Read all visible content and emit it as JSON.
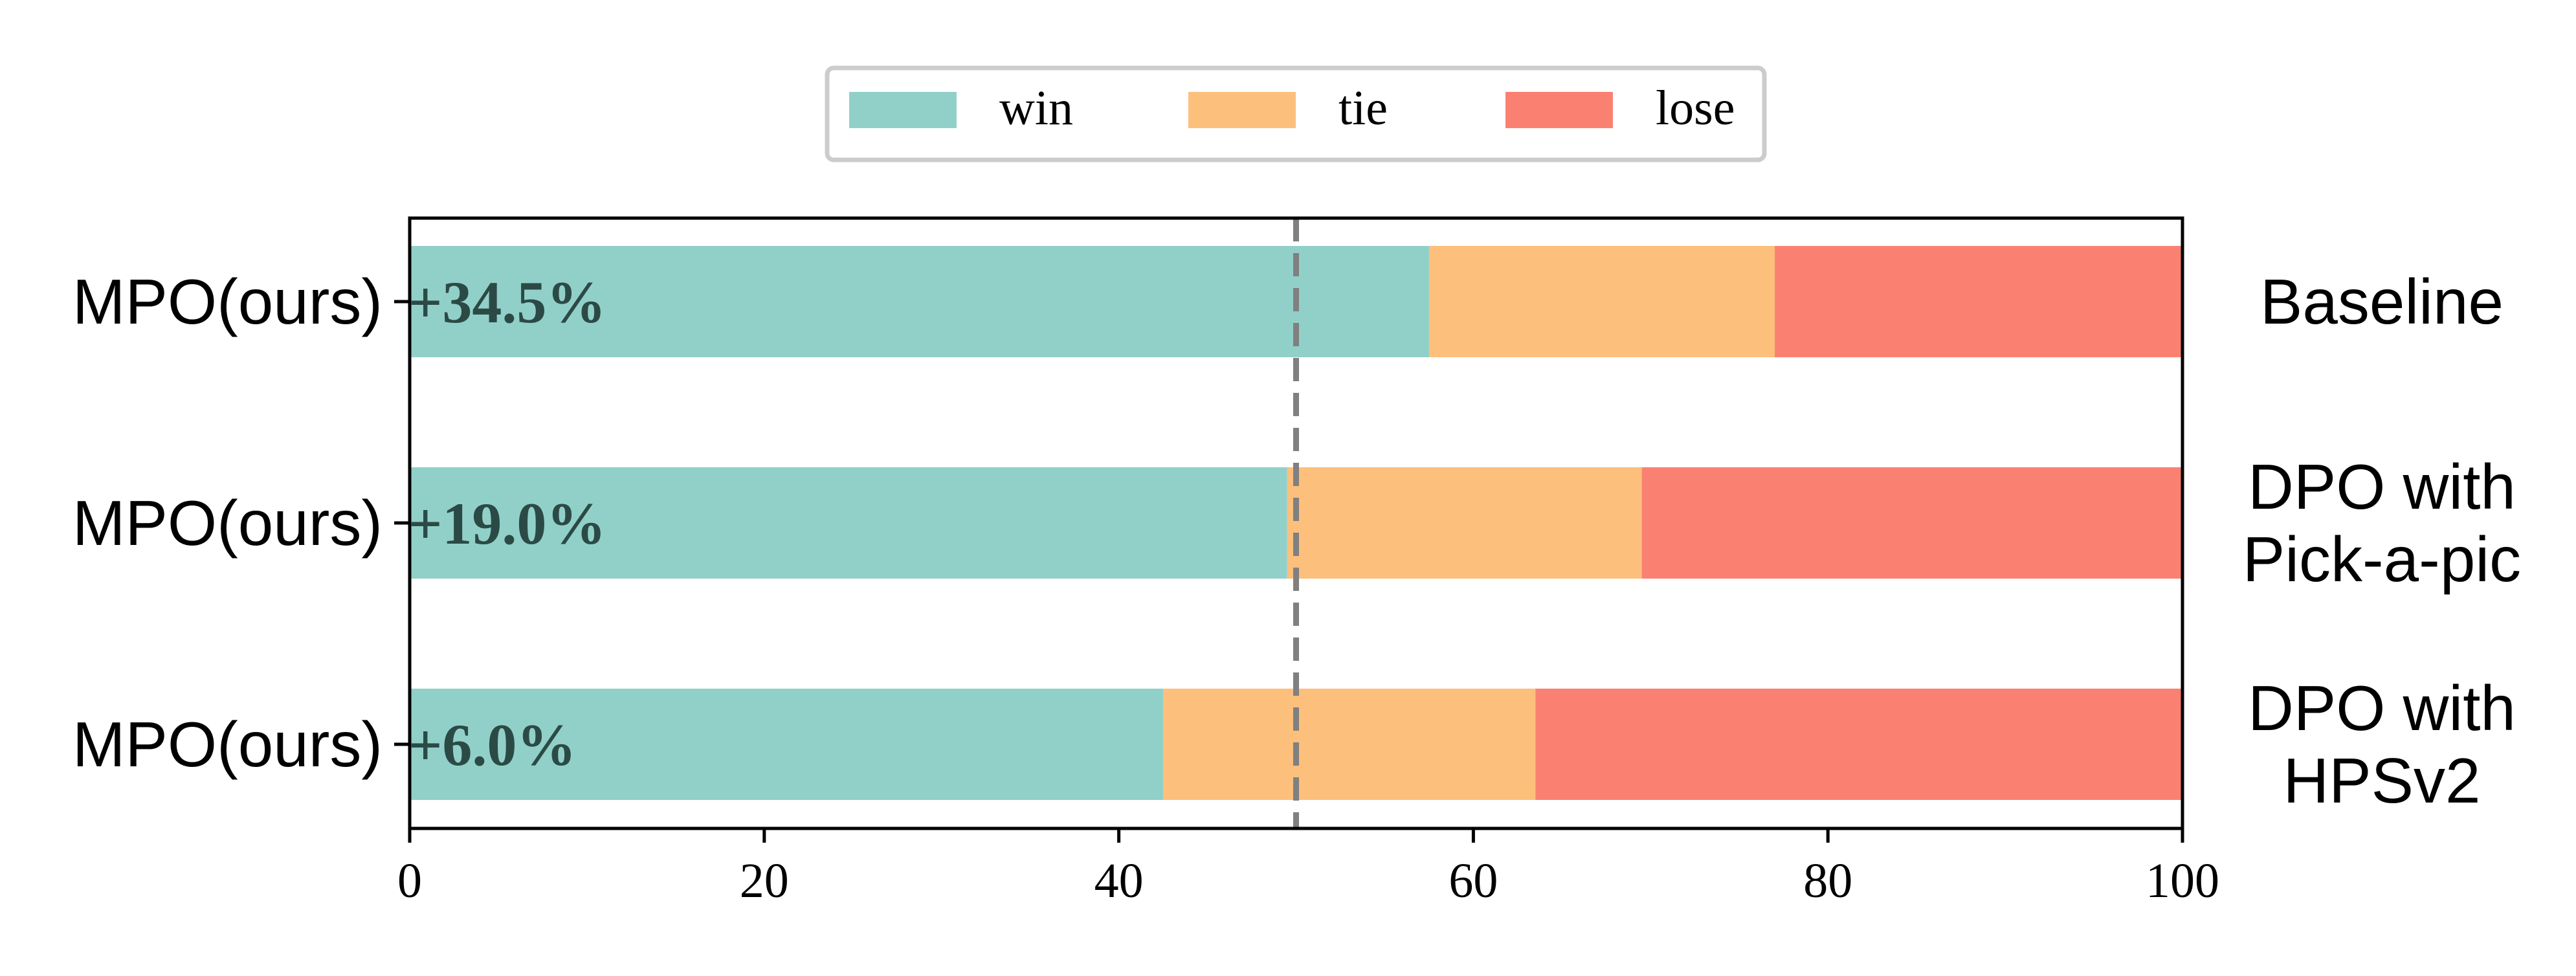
{
  "chart_data": {
    "type": "bar",
    "orientation": "horizontal",
    "stacked": true,
    "categories": [
      "MPO(ours)",
      "MPO(ours)",
      "MPO(ours)"
    ],
    "right_labels": [
      [
        "Baseline"
      ],
      [
        "DPO with",
        "Pick-a-pic"
      ],
      [
        "DPO with",
        "HPSv2"
      ]
    ],
    "series": [
      {
        "name": "win",
        "color": "#91d0c8",
        "values": [
          57.5,
          49.5,
          42.5
        ]
      },
      {
        "name": "tie",
        "color": "#fdbf7c",
        "values": [
          19.5,
          20.0,
          21.0
        ]
      },
      {
        "name": "lose",
        "color": "#fa8172",
        "values": [
          23.0,
          30.5,
          36.5
        ]
      }
    ],
    "annotations": [
      "+34.5%",
      "+19.0%",
      "+6.0%"
    ],
    "reference_line": {
      "x": 50,
      "style": "dashed",
      "color": "#808080"
    },
    "xlim": [
      0,
      100
    ],
    "xticks": [
      "0",
      "20",
      "40",
      "60",
      "80",
      "100"
    ],
    "xlabel": "",
    "ylabel": "",
    "title": "",
    "grid": false,
    "legend_position": "top-center"
  }
}
